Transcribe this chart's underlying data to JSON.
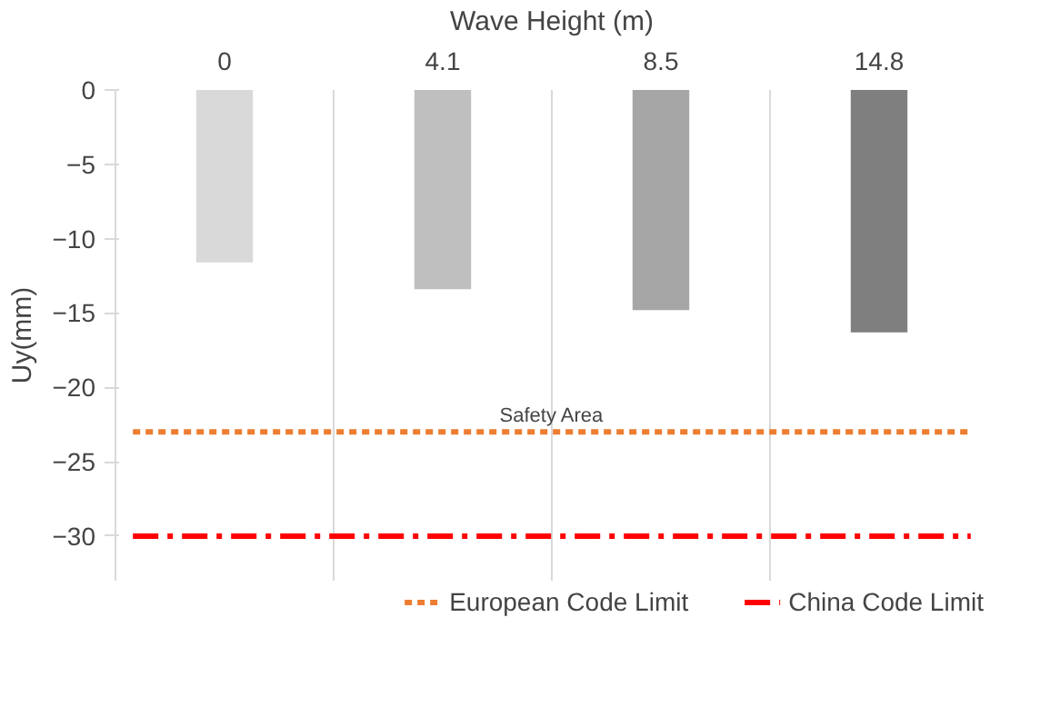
{
  "chart_data": {
    "type": "bar",
    "xlabel": "Wave Height (m)",
    "ylabel": "Uy(mm)",
    "categories": [
      "0",
      "4.1",
      "8.5",
      "14.8"
    ],
    "values": [
      -11.6,
      -13.4,
      -14.8,
      -16.3
    ],
    "colors": [
      "#d9d9d9",
      "#bfbfbf",
      "#a6a6a6",
      "#7f7f7f"
    ],
    "ylim": [
      -33,
      0
    ],
    "yticks": [
      -30,
      -25,
      -20,
      -15,
      -10,
      -5,
      0
    ],
    "grid": "x",
    "legend": "bottom",
    "ref_lines": [
      {
        "axis": "y",
        "value": -23,
        "label": "European Code Limit",
        "color": "#ed7d31",
        "line_style": "dashed"
      },
      {
        "axis": "y",
        "value": -30,
        "label": "China Code Limit",
        "color": "#ff0000",
        "line_style": "dashdot"
      }
    ],
    "annotations": [
      "Safety Area"
    ]
  }
}
